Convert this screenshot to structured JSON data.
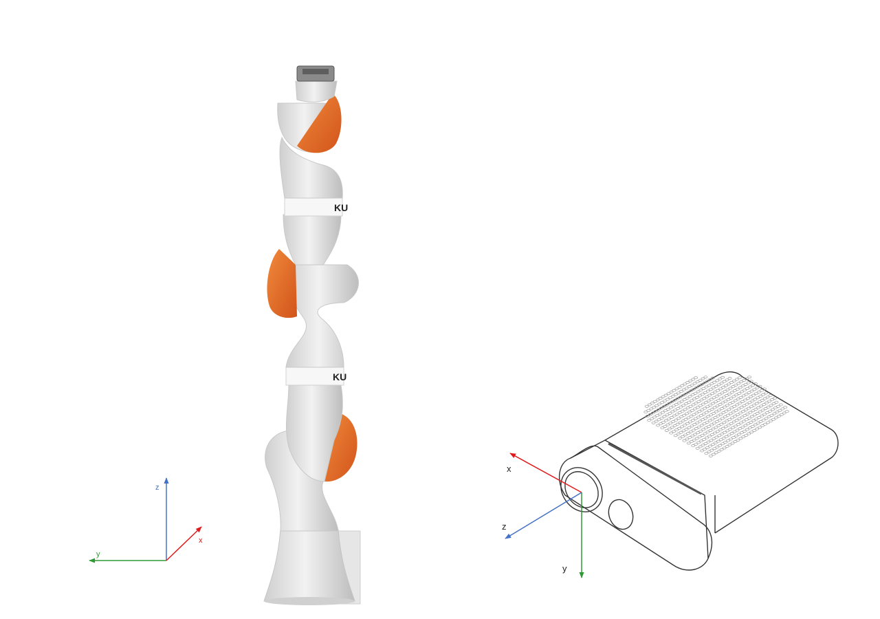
{
  "colors": {
    "x_axis": "#e0191b",
    "y_axis": "#2f9a35",
    "z_axis": "#4472c4",
    "robot_body": "#d9d9d9",
    "robot_accent": "#e5651f",
    "label_text": "#222222"
  },
  "robot": {
    "brand_upper": "KU",
    "brand_lower": "KU",
    "frame": {
      "x": "x",
      "y": "y",
      "z": "z"
    }
  },
  "camera": {
    "frame": {
      "x": "x",
      "y": "y",
      "z": "z"
    }
  }
}
